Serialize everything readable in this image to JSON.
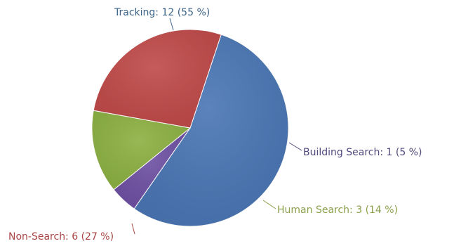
{
  "chart_data": {
    "type": "pie",
    "slices": [
      {
        "category": "Tracking",
        "value": 12,
        "percent": 55,
        "label": "Tracking: 12 (55 %)",
        "color": "#4A76B4",
        "label_color": "#3D6489"
      },
      {
        "category": "Building Search",
        "value": 1,
        "percent": 5,
        "label": "Building Search: 1 (5 %)",
        "color": "#6E50A3",
        "label_color": "#51497C"
      },
      {
        "category": "Human Search",
        "value": 3,
        "percent": 14,
        "label": "Human Search: 3 (14 %)",
        "color": "#8CB042",
        "label_color": "#8AA04A"
      },
      {
        "category": "Non-Search",
        "value": 6,
        "percent": 27,
        "label": "Non-Search: 6 (27 %)",
        "color": "#BF4A49",
        "label_color": "#A94544"
      }
    ]
  }
}
